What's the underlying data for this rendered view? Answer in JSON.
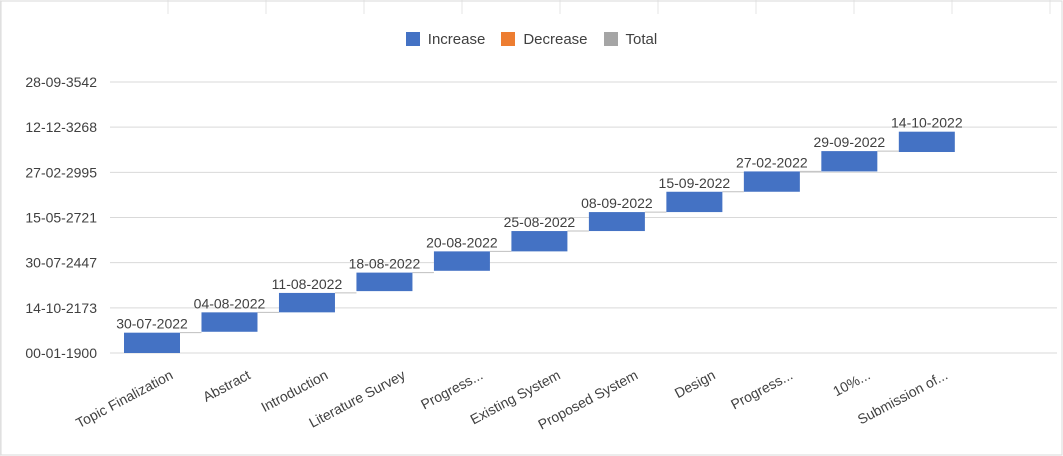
{
  "chart_data": {
    "type": "bar",
    "subtype": "waterfall",
    "title": "",
    "legend": {
      "position": "top",
      "entries": [
        {
          "name": "Increase",
          "color": "#4472C4"
        },
        {
          "name": "Decrease",
          "color": "#ED7D31"
        },
        {
          "name": "Total",
          "color": "#A5A5A5"
        }
      ]
    },
    "y_ticks": [
      "00-01-1900",
      "14-10-2173",
      "30-07-2447",
      "15-05-2721",
      "27-02-2995",
      "12-12-3268",
      "28-09-3542"
    ],
    "grid": true,
    "categories": [
      "Topic Finalization",
      "Abstract",
      "Introduction",
      "Literature Survey",
      "Progress...",
      "Existing System",
      "Proposed System",
      "Design",
      "Progress...",
      "10%...",
      "Submission of..."
    ],
    "data_labels": [
      "30-07-2022",
      "04-08-2022",
      "11-08-2022",
      "18-08-2022",
      "20-08-2022",
      "25-08-2022",
      "08-09-2022",
      "15-09-2022",
      "27-02-2022",
      "29-09-2022",
      "14-10-2022"
    ],
    "y_range_index": [
      0,
      6
    ],
    "bar_bottom_index": [
      0,
      0.47,
      0.9,
      1.37,
      1.82,
      2.25,
      2.7,
      3.12,
      3.57,
      4.02,
      4.45
    ],
    "bar_top_index": [
      0.45,
      0.9,
      1.33,
      1.78,
      2.25,
      2.7,
      3.12,
      3.57,
      4.02,
      4.47,
      4.9
    ]
  }
}
